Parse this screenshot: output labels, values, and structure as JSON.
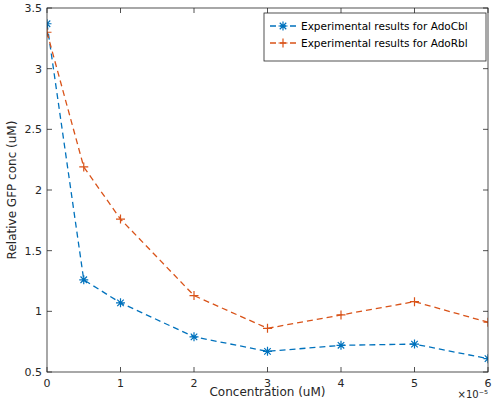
{
  "chart_data": {
    "type": "line",
    "x_label": "Concentration (uM)",
    "y_label": "Relative GFP conc (uM)",
    "annotations": [
      "×10⁻⁵"
    ],
    "x": [
      0,
      5e-06,
      1e-05,
      2e-05,
      3e-05,
      4e-05,
      5e-05,
      6e-05
    ],
    "series": [
      {
        "name": "Experimental results for AdoCbl",
        "color": "#0072bd",
        "marker": "asterisk",
        "line_style": "dashed",
        "values": [
          3.37,
          1.26,
          1.07,
          0.79,
          0.67,
          0.72,
          0.73,
          0.61
        ]
      },
      {
        "name": "Experimental results for AdoRbl",
        "color": "#d95319",
        "marker": "plus",
        "line_style": "dashed",
        "values": [
          3.3,
          2.19,
          1.76,
          1.13,
          0.86,
          0.97,
          1.08,
          0.91
        ]
      }
    ],
    "xlim": [
      0,
      6e-05
    ],
    "xticks": [
      0,
      {
        "value": 1e-05,
        "label": "1"
      },
      {
        "value": 2e-05,
        "label": "2"
      },
      {
        "value": 3e-05,
        "label": "3"
      },
      {
        "value": 4e-05,
        "label": "4"
      },
      {
        "value": 5e-05,
        "label": "5"
      },
      {
        "value": 6e-05,
        "label": "6"
      }
    ],
    "ylim": [
      0.5,
      3.5
    ],
    "yticks": [
      0.5,
      1,
      1.5,
      2,
      2.5,
      3,
      3.5
    ],
    "grid": false,
    "legend": "top-right"
  }
}
